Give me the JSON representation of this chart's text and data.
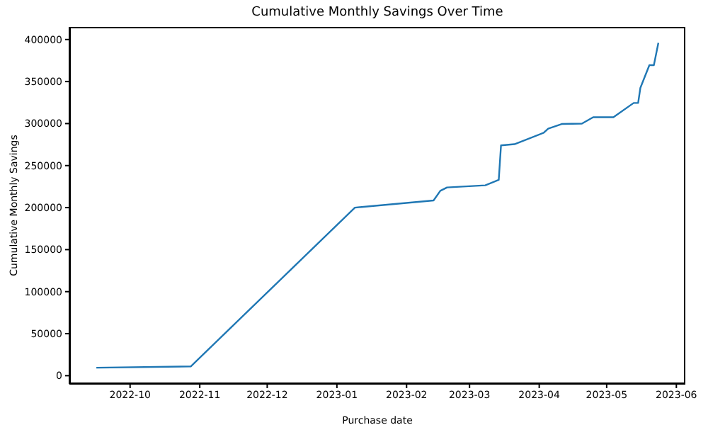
{
  "chart_data": {
    "type": "line",
    "title": "Cumulative Monthly Savings Over Time",
    "xlabel": "Purchase date",
    "ylabel": "Cumulative Monthly Savings",
    "x": [
      "2022-09-16",
      "2022-10-28",
      "2023-01-09",
      "2023-02-13",
      "2023-02-16",
      "2023-02-19",
      "2023-03-08",
      "2023-03-14",
      "2023-03-15",
      "2023-03-21",
      "2023-04-03",
      "2023-04-05",
      "2023-04-11",
      "2023-04-20",
      "2023-04-25",
      "2023-05-04",
      "2023-05-13",
      "2023-05-15",
      "2023-05-16",
      "2023-05-20",
      "2023-05-22",
      "2023-05-24"
    ],
    "series": [
      {
        "color": "#1f77b4",
        "values": [
          9500,
          11000,
          200000,
          208500,
          220000,
          224000,
          226500,
          233000,
          274000,
          275500,
          289000,
          294000,
          299500,
          300000,
          307500,
          307500,
          324500,
          324500,
          342500,
          369500,
          369500,
          396000
        ]
      }
    ],
    "xlim": [
      "2022-09-04",
      "2023-06-05"
    ],
    "xticks": [
      "2022-10",
      "2022-11",
      "2022-12",
      "2023-01",
      "2023-02",
      "2023-03",
      "2023-04",
      "2023-05",
      "2023-06"
    ],
    "ylim": [
      -9800,
      415000
    ],
    "yticks": [
      0,
      50000,
      100000,
      150000,
      200000,
      250000,
      300000,
      350000,
      400000
    ],
    "marker": "none",
    "line_style": "solid"
  }
}
